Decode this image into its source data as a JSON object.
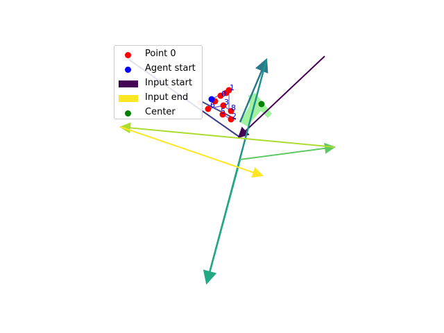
{
  "legend": {
    "items": [
      {
        "label": "Point 0",
        "kind": "dot",
        "color": "#ff0000"
      },
      {
        "label": "Agent start",
        "kind": "dot",
        "color": "#0000ff"
      },
      {
        "label": "Input start",
        "kind": "rect",
        "color": "#440154"
      },
      {
        "label": "Input end",
        "kind": "rect",
        "color": "#fde725"
      },
      {
        "label": "Center",
        "kind": "dot",
        "color": "#008000"
      }
    ]
  },
  "chart_data": {
    "type": "scatter",
    "title": "",
    "xlabel": "",
    "ylabel": "",
    "axes_visible": false,
    "grid": false,
    "legend_placement": "upper-left",
    "colormap": "viridis",
    "point_labels": [
      "0",
      "1",
      "2",
      "3",
      "4",
      "5",
      "6",
      "7",
      "8"
    ],
    "point_color": "#ff0000",
    "agent_color": "#0000ff",
    "center_color": "#008000",
    "path_color": "#90ee90"
  }
}
